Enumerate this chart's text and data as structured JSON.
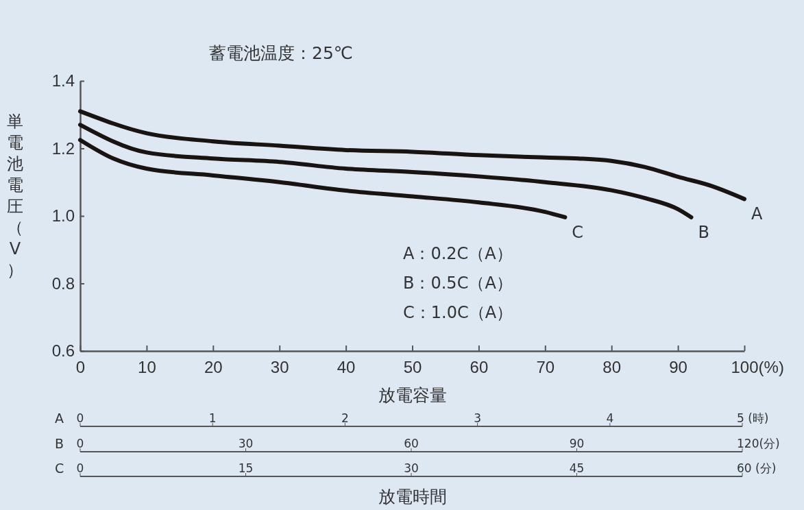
{
  "chart_data": [
    {
      "type": "line",
      "title": "蓄電池温度：25℃",
      "xlabel": "放電容量",
      "ylabel": "単電池電圧（V）",
      "xlim": [
        0,
        100
      ],
      "xticks": [
        0,
        10,
        20,
        30,
        40,
        50,
        60,
        70,
        80,
        90,
        {
          "value": 100,
          "label": "100(%)"
        }
      ],
      "ylim": [
        0.6,
        1.4
      ],
      "yticks": [
        0.6,
        0.8,
        {
          "value": 1.0,
          "label": "1.0"
        },
        1.2,
        1.4
      ],
      "grid": false,
      "legend": false,
      "marker": "none",
      "line_style": "solid",
      "annotations": [
        "A：0.2C（A）",
        "B：0.5C（A）",
        "C：1.0C（A）"
      ],
      "series": [
        {
          "name": "A",
          "color": "#1a1410",
          "x": [
            0,
            10,
            20,
            30,
            40,
            50,
            60,
            70,
            75,
            80,
            85,
            90,
            95,
            100
          ],
          "values": [
            1.31,
            1.245,
            1.221,
            1.208,
            1.195,
            1.19,
            1.18,
            1.173,
            1.17,
            1.163,
            1.145,
            1.116,
            1.089,
            1.05
          ]
        },
        {
          "name": "B",
          "color": "#1a1410",
          "x": [
            0,
            10,
            20,
            30,
            40,
            50,
            60,
            70,
            80,
            85,
            90,
            92
          ],
          "values": [
            1.27,
            1.188,
            1.17,
            1.16,
            1.14,
            1.13,
            1.117,
            1.1,
            1.076,
            1.053,
            1.02,
            0.996
          ]
        },
        {
          "name": "C",
          "color": "#1a1410",
          "x": [
            0,
            5,
            10,
            20,
            30,
            40,
            50,
            60,
            70,
            73
          ],
          "values": [
            1.225,
            1.17,
            1.14,
            1.12,
            1.1,
            1.075,
            1.058,
            1.04,
            1.012,
            0.996
          ]
        }
      ]
    },
    {
      "type": "other",
      "title": "A",
      "annotations": [
        "0",
        "1",
        "2",
        "3",
        "4",
        "5 (時)"
      ]
    },
    {
      "type": "other",
      "title": "B",
      "annotations": [
        "0",
        "30",
        "60",
        "90",
        "120(分)"
      ]
    },
    {
      "type": "other",
      "title": "C",
      "annotations": [
        "0",
        "15",
        "30",
        "45",
        "60 (分)"
      ],
      "xlabel": "放電時間"
    }
  ]
}
